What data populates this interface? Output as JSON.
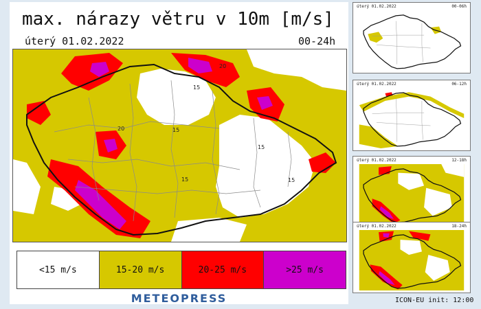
{
  "map": {
    "title": "max. nárazy větru v 10m [m/s]",
    "date": "úterý 01.02.2022",
    "period": "00-24h",
    "isoline_labels": [
      "20",
      "15",
      "20",
      "15",
      "15",
      "15",
      "15"
    ]
  },
  "legend": [
    {
      "label": "<15 m/s",
      "color": "#ffffff"
    },
    {
      "label": "15-20 m/s",
      "color": "#d6c800"
    },
    {
      "label": "20-25 m/s",
      "color": "#ff0000"
    },
    {
      "label": ">25 m/s",
      "color": "#cc00cc"
    }
  ],
  "brand": "METEOPRESS",
  "thumbnails": [
    {
      "date": "úterý 01.02.2022",
      "period": "00-06h"
    },
    {
      "date": "úterý 01.02.2022",
      "period": "06-12h"
    },
    {
      "date": "úterý 01.02.2022",
      "period": "12-18h"
    },
    {
      "date": "úterý 01.02.2022",
      "period": "18-24h"
    }
  ],
  "model_info": "ICON-EU  init:  12:00"
}
